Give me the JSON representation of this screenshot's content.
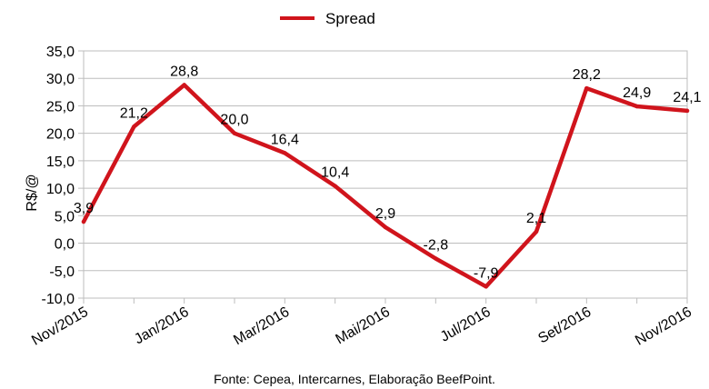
{
  "chart_data": {
    "type": "line",
    "ylabel": "R$/@",
    "ylim": [
      -10,
      35
    ],
    "ytick_labels": [
      "-10,0",
      "-5,0",
      "0,0",
      "5,0",
      "10,0",
      "15,0",
      "20,0",
      "25,0",
      "30,0",
      "35,0"
    ],
    "x": [
      "Nov/2015",
      "Dez/2015",
      "Jan/2016",
      "Fev/2016",
      "Mar/2016",
      "Abr/2016",
      "Mai/2016",
      "Jun/2016",
      "Jul/2016",
      "Ago/2016",
      "Set/2016",
      "Out/2016",
      "Nov/2016"
    ],
    "xtick_labels": [
      "Nov/2015",
      "Jan/2016",
      "Mar/2016",
      "Mai/2016",
      "Jul/2016",
      "Set/2016",
      "Nov/2016"
    ],
    "series": [
      {
        "name": "Spread",
        "color": "#d0141c",
        "values": [
          3.9,
          21.2,
          28.8,
          20.0,
          16.4,
          10.4,
          2.9,
          -2.8,
          -7.9,
          2.1,
          28.2,
          24.9,
          24.1
        ],
        "labels": [
          "3,9",
          "21,2",
          "28,8",
          "20,0",
          "16,4",
          "10,4",
          "2,9",
          "-2,8",
          "-7,9",
          "2,1",
          "28,2",
          "24,9",
          "24,1"
        ]
      }
    ],
    "grid": "horizontal",
    "legend": "top-center"
  },
  "source_note": "Fonte: Cepea, Intercarnes, Elaboração BeefPoint."
}
